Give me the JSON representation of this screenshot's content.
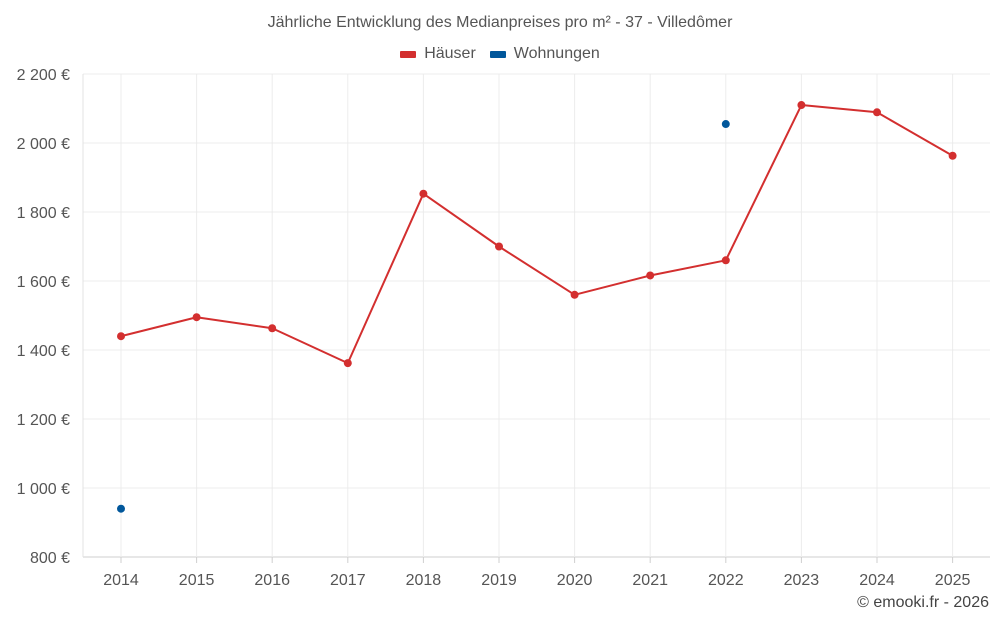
{
  "chart_data": {
    "type": "line",
    "title": "Jährliche Entwicklung des Medianpreises pro m² - 37 - Villedômer",
    "xlabel": "",
    "ylabel": "",
    "categories": [
      "2014",
      "2015",
      "2016",
      "2017",
      "2018",
      "2019",
      "2020",
      "2021",
      "2022",
      "2023",
      "2024",
      "2025"
    ],
    "ylim": [
      800,
      2200
    ],
    "yticks": [
      800,
      1000,
      1200,
      1400,
      1600,
      1800,
      2000,
      2200
    ],
    "ytick_labels": [
      "800 €",
      "1 000 €",
      "1 200 €",
      "1 400 €",
      "1 600 €",
      "1 800 €",
      "2 000 €",
      "2 200 €"
    ],
    "grid": true,
    "legend_position": "top-center",
    "series": [
      {
        "name": "Häuser",
        "color": "#d32f2f",
        "values": [
          1440,
          1495,
          1463,
          1362,
          1853,
          1700,
          1560,
          1616,
          1660,
          2110,
          2089,
          1963
        ]
      },
      {
        "name": "Wohnungen",
        "color": "#01579b",
        "values": [
          940,
          null,
          null,
          null,
          null,
          null,
          null,
          null,
          2055,
          null,
          null,
          null
        ]
      }
    ]
  },
  "copyright": "© emooki.fr - 2026"
}
